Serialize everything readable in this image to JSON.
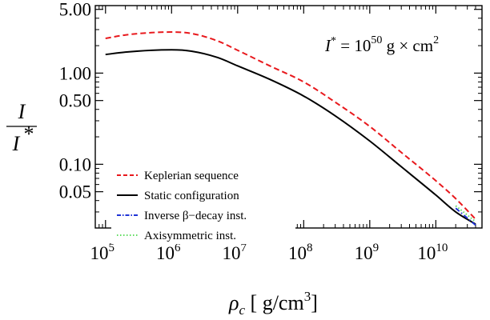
{
  "chart_data": {
    "type": "line",
    "xscale": "log",
    "yscale": "log",
    "xlim": [
      70000,
      50000000000
    ],
    "ylim": [
      0.02,
      5.5
    ],
    "x_ticks": [
      100000,
      1000000,
      10000000,
      100000000,
      1000000000,
      10000000000
    ],
    "x_tick_labels": [
      {
        "base": "10",
        "exp": "5"
      },
      {
        "base": "10",
        "exp": "6"
      },
      {
        "base": "10",
        "exp": "7"
      },
      {
        "base": "10",
        "exp": "8"
      },
      {
        "base": "10",
        "exp": "9"
      },
      {
        "base": "10",
        "exp": "10"
      }
    ],
    "y_ticks": [
      5,
      1,
      0.5,
      0.1,
      0.05
    ],
    "y_tick_labels": [
      "5.00",
      "1.00",
      "0.50",
      "0.10",
      "0.05"
    ],
    "xlabel": {
      "main": "ρ",
      "sub": "c",
      "unit_prefix": " [ g/cm",
      "unit_exp": "3",
      "unit_suffix": "]"
    },
    "ylabel": {
      "numerator": "I",
      "denominator": "I",
      "denominator_sup": "*"
    },
    "annotation": {
      "prefix": "I",
      "prefix_sup": "*",
      "middle": " = 10",
      "exp": "50",
      "unit": " g × cm",
      "unit_exp": "2"
    },
    "legend_position": "bottom-left",
    "grid": false,
    "series": [
      {
        "name": "Keplerian sequence",
        "color": "#e8191d",
        "dash": "dashed",
        "x": [
          100000,
          200000,
          500000,
          1000000,
          2000000,
          5000000,
          10000000,
          30000000,
          100000000,
          300000000,
          1000000000,
          3000000000,
          10000000000,
          20000000000,
          40000000000
        ],
        "y": [
          2.4,
          2.62,
          2.78,
          2.82,
          2.72,
          2.25,
          1.78,
          1.21,
          0.8,
          0.48,
          0.26,
          0.135,
          0.066,
          0.042,
          0.025
        ]
      },
      {
        "name": "Static configuration",
        "color": "#000000",
        "dash": "solid",
        "x": [
          100000,
          200000,
          500000,
          1000000,
          2000000,
          5000000,
          10000000,
          30000000,
          100000000,
          300000000,
          1000000000,
          3000000000,
          10000000000,
          20000000000,
          40000000000
        ],
        "y": [
          1.6,
          1.7,
          1.78,
          1.8,
          1.74,
          1.48,
          1.2,
          0.86,
          0.56,
          0.34,
          0.18,
          0.094,
          0.046,
          0.03,
          0.022
        ]
      },
      {
        "name": "Inverse β−decay inst.",
        "color": "#1f33d6",
        "dash": "dashdot",
        "x": [
          20000000000,
          40000000000
        ],
        "y": [
          0.033,
          0.0215
        ]
      },
      {
        "name": "Axisymmetric inst.",
        "color": "#5fdc5f",
        "dash": "dotted",
        "x": [
          20000000000,
          40000000000
        ],
        "y": [
          0.035,
          0.0235
        ]
      }
    ]
  }
}
